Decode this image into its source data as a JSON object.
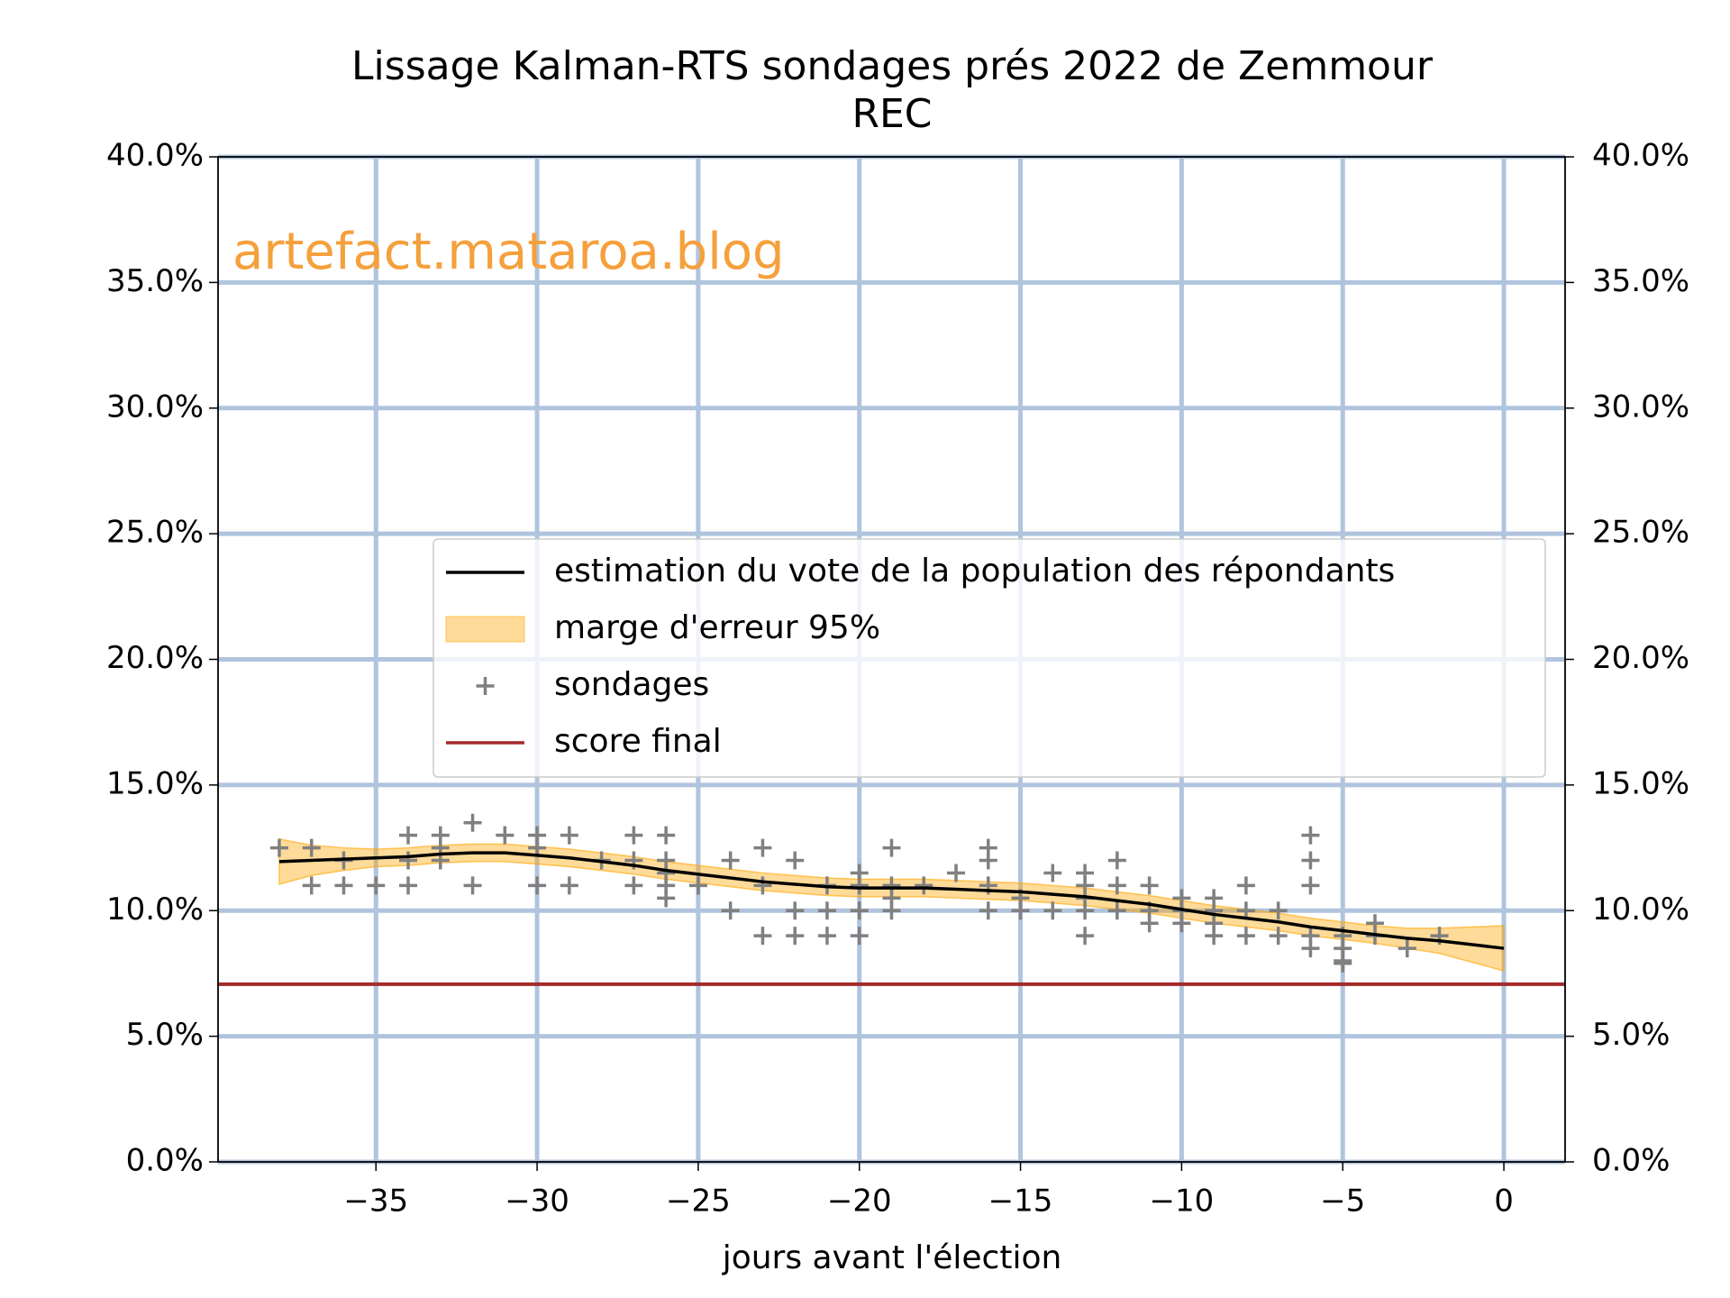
{
  "chart_data": {
    "type": "line",
    "title": [
      "Lissage Kalman-RTS sondages prés 2022 de Zemmour",
      "REC"
    ],
    "xlabel": "jours avant l'élection",
    "annotation": "artefact.mataroa.blog",
    "annotation_color": "#f5a03c",
    "xlim": [
      -39.9,
      1.9
    ],
    "xticks": [
      {
        "value": -35,
        "label": "−35"
      },
      {
        "value": -30,
        "label": "−30"
      },
      {
        "value": -25,
        "label": "−25"
      },
      {
        "value": -20,
        "label": "−20"
      },
      {
        "value": -15,
        "label": "−15"
      },
      {
        "value": -10,
        "label": "−10"
      },
      {
        "value": -5,
        "label": "−5"
      },
      0
    ],
    "ylim": [
      0,
      40
    ],
    "yticks": [
      {
        "value": 0,
        "label": "0.0%"
      },
      {
        "value": 5,
        "label": "5.0%"
      },
      {
        "value": 10,
        "label": "10.0%"
      },
      {
        "value": 15,
        "label": "15.0%"
      },
      {
        "value": 20,
        "label": "20.0%"
      },
      {
        "value": 25,
        "label": "25.0%"
      },
      {
        "value": 30,
        "label": "30.0%"
      },
      {
        "value": 35,
        "label": "35.0%"
      },
      {
        "value": 40,
        "label": "40.0%"
      }
    ],
    "y2lim": [
      0,
      40
    ],
    "y2ticks": [
      {
        "value": 0,
        "label": "0.0%"
      },
      {
        "value": 5,
        "label": "5.0%"
      },
      {
        "value": 10,
        "label": "10.0%"
      },
      {
        "value": 15,
        "label": "15.0%"
      },
      {
        "value": 20,
        "label": "20.0%"
      },
      {
        "value": 25,
        "label": "25.0%"
      },
      {
        "value": 30,
        "label": "30.0%"
      },
      {
        "value": 35,
        "label": "35.0%"
      },
      {
        "value": 40,
        "label": "40.0%"
      }
    ],
    "grid": true,
    "grid_color": "#b0c4de",
    "legend": "center",
    "series": [
      {
        "name": "estimation du vote de la population des répondants",
        "type": "line",
        "color": "#000000",
        "x": [
          -38,
          -37,
          -36,
          -35,
          -34,
          -33,
          -32,
          -31,
          -30,
          -29,
          -28,
          -27,
          -26,
          -25,
          -24,
          -23,
          -22,
          -21,
          -20,
          -19,
          -18,
          -17,
          -16,
          -15,
          -14,
          -13,
          -12,
          -11,
          -10,
          -9,
          -8,
          -7,
          -6,
          -5,
          -4,
          -3,
          -2,
          -1,
          0
        ],
        "values": [
          11.95,
          12.0,
          12.05,
          12.1,
          12.15,
          12.25,
          12.3,
          12.3,
          12.2,
          12.1,
          11.95,
          11.8,
          11.6,
          11.45,
          11.3,
          11.15,
          11.05,
          10.95,
          10.9,
          10.9,
          10.9,
          10.85,
          10.8,
          10.75,
          10.65,
          10.55,
          10.4,
          10.25,
          10.05,
          9.85,
          9.7,
          9.55,
          9.35,
          9.2,
          9.05,
          8.9,
          8.8,
          8.65,
          8.5
        ]
      },
      {
        "name": "marge d'erreur 95%",
        "type": "band",
        "color": "#ffa500",
        "x": [
          -38,
          -37,
          -36,
          -35,
          -34,
          -33,
          -32,
          -31,
          -30,
          -29,
          -28,
          -27,
          -26,
          -25,
          -24,
          -23,
          -22,
          -21,
          -20,
          -19,
          -18,
          -17,
          -16,
          -15,
          -14,
          -13,
          -12,
          -11,
          -10,
          -9,
          -8,
          -7,
          -6,
          -5,
          -4,
          -3,
          -2,
          -1,
          0
        ],
        "lower": [
          11.05,
          11.4,
          11.6,
          11.75,
          11.8,
          11.9,
          11.95,
          11.95,
          11.85,
          11.75,
          11.6,
          11.45,
          11.25,
          11.1,
          10.95,
          10.8,
          10.7,
          10.6,
          10.55,
          10.55,
          10.55,
          10.5,
          10.45,
          10.4,
          10.3,
          10.2,
          10.05,
          9.9,
          9.7,
          9.5,
          9.35,
          9.2,
          9.0,
          8.85,
          8.7,
          8.5,
          8.3,
          7.95,
          7.6
        ],
        "upper": [
          12.85,
          12.6,
          12.5,
          12.45,
          12.5,
          12.6,
          12.65,
          12.65,
          12.55,
          12.45,
          12.3,
          12.15,
          11.95,
          11.8,
          11.65,
          11.5,
          11.4,
          11.3,
          11.25,
          11.25,
          11.25,
          11.2,
          11.15,
          11.1,
          11.0,
          10.9,
          10.75,
          10.6,
          10.4,
          10.2,
          10.05,
          9.9,
          9.7,
          9.55,
          9.4,
          9.3,
          9.3,
          9.35,
          9.4
        ]
      },
      {
        "name": "sondages",
        "type": "scatter",
        "color": "#808080",
        "x": [
          -38,
          -37,
          -37,
          -36,
          -36,
          -35,
          -34,
          -34,
          -34,
          -33,
          -33,
          -33,
          -32,
          -32,
          -31,
          -30,
          -30,
          -30,
          -29,
          -29,
          -28,
          -27,
          -27,
          -27,
          -26,
          -26,
          -26,
          -26,
          -26,
          -25,
          -24,
          -24,
          -23,
          -23,
          -23,
          -22,
          -22,
          -22,
          -21,
          -21,
          -21,
          -20,
          -20,
          -20,
          -20,
          -19,
          -19,
          -19,
          -19,
          -18,
          -17,
          -16,
          -16,
          -16,
          -16,
          -15,
          -15,
          -14,
          -14,
          -13,
          -13,
          -13,
          -13,
          -13,
          -12,
          -12,
          -12,
          -11,
          -11,
          -11,
          -10,
          -10,
          -10,
          -9,
          -9,
          -9,
          -9,
          -8,
          -8,
          -8,
          -7,
          -7,
          -6,
          -6,
          -6,
          -6,
          -6,
          -5,
          -5,
          -5,
          -5,
          -4,
          -4,
          -3,
          -2
        ],
        "values": [
          12.5,
          12.5,
          11,
          12,
          11,
          11,
          13,
          12,
          11,
          13,
          12.5,
          12,
          13.5,
          11,
          13,
          13,
          12.5,
          11,
          13,
          11,
          12,
          13,
          12,
          11,
          13,
          12,
          11.5,
          11,
          10.5,
          11,
          12,
          10,
          12.5,
          11,
          9,
          12,
          10,
          9,
          11,
          10,
          9,
          11.5,
          11,
          10,
          9,
          12.5,
          11,
          10.5,
          10,
          11,
          11.5,
          12.5,
          12,
          11,
          10,
          10.5,
          10,
          11.5,
          10,
          11.5,
          11,
          10.5,
          10,
          9,
          12,
          11,
          10,
          11,
          10,
          9.5,
          10.5,
          10,
          9.5,
          10.5,
          10,
          9.5,
          9,
          11,
          10,
          9,
          10,
          9,
          13,
          12,
          11,
          9,
          8.5,
          9,
          8.5,
          8,
          7.9,
          9.5,
          9,
          8.5,
          9
        ]
      },
      {
        "name": "score final",
        "type": "hline",
        "color": "#a52a2a",
        "values": [
          7.07
        ]
      }
    ]
  }
}
